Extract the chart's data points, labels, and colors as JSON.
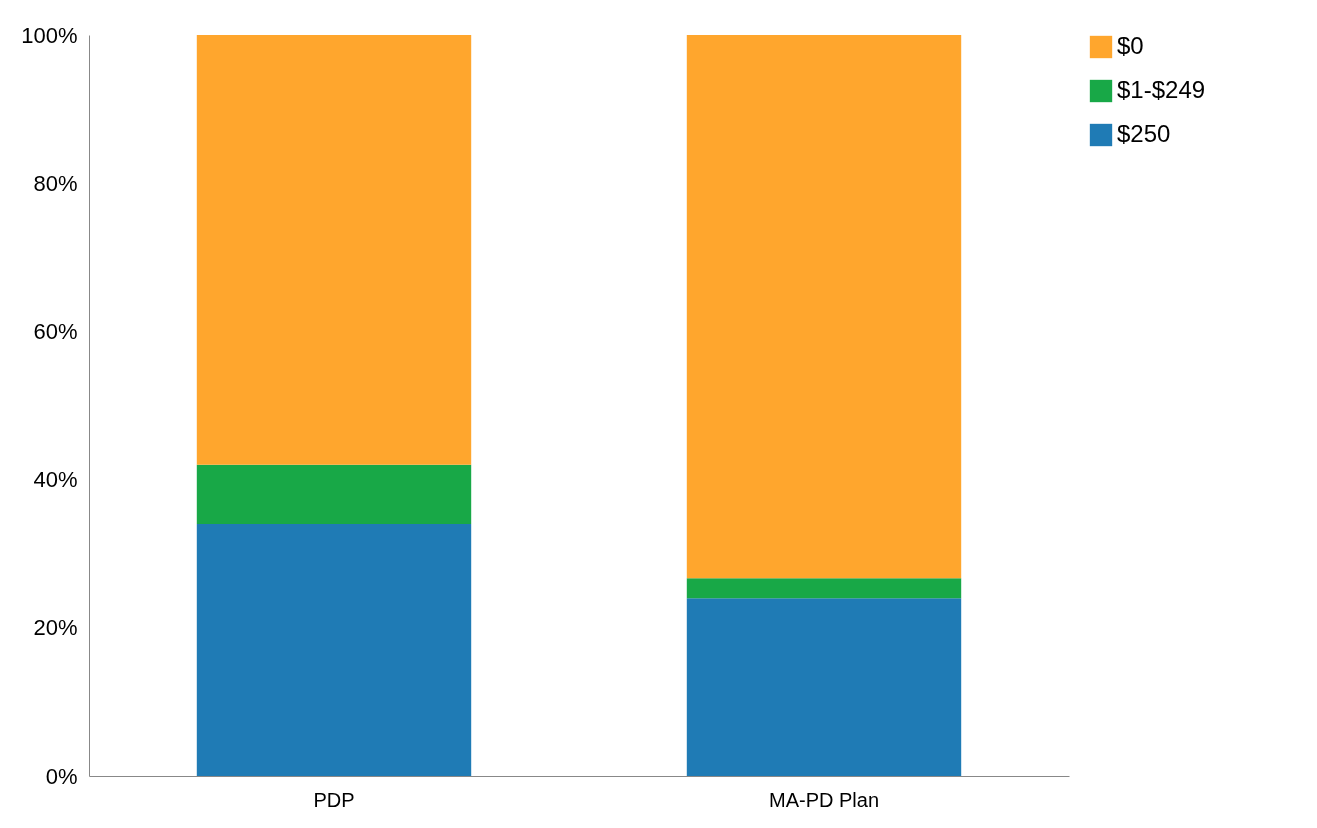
{
  "chart_data": {
    "type": "bar",
    "stacked": true,
    "categories": [
      "PDP",
      "MA-PD Plan"
    ],
    "series": [
      {
        "name": "$250",
        "color": "#1f7bb5",
        "values": [
          34,
          24
        ]
      },
      {
        "name": "$1-$249",
        "color": "#18a847",
        "values": [
          8,
          2.7
        ]
      },
      {
        "name": "$0",
        "color": "#ffa62d",
        "values": [
          58,
          73.3
        ]
      }
    ],
    "ylim": [
      0,
      100
    ],
    "yticks": [
      {
        "value": 0,
        "label": "0%"
      },
      {
        "value": 20,
        "label": "20%"
      },
      {
        "value": 40,
        "label": "40%"
      },
      {
        "value": 60,
        "label": "60%"
      },
      {
        "value": 80,
        "label": "80%"
      },
      {
        "value": 100,
        "label": "100%"
      }
    ],
    "grid": false,
    "legend": "right"
  }
}
